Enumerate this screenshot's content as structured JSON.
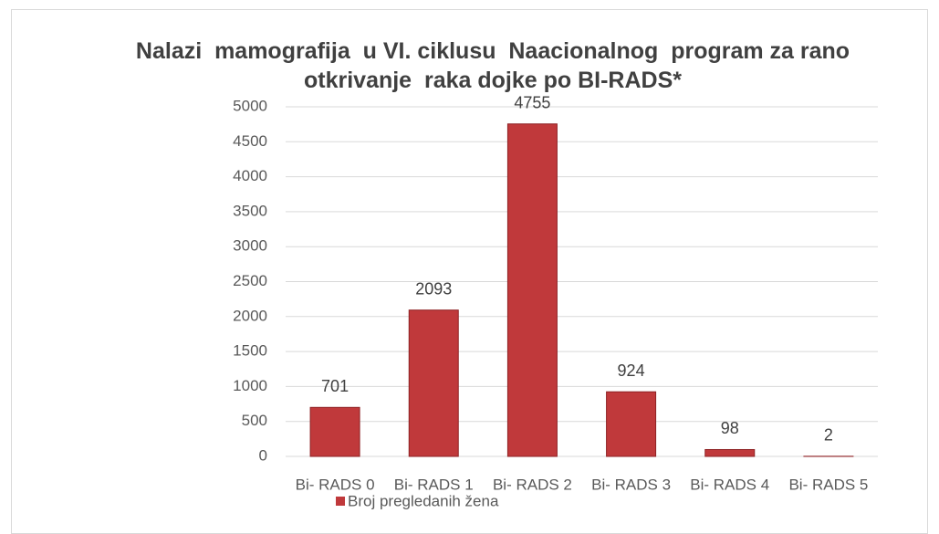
{
  "chart_data": {
    "type": "bar",
    "title": "Nalazi  mamografija  u VI. ciklusu  Naacionalnog  program za rano otkrivanje  raka dojke po BI-RADS*",
    "categories": [
      "Bi- RADS 0",
      "Bi- RADS 1",
      "Bi- RADS 2",
      "Bi- RADS 3",
      "Bi- RADS 4",
      "Bi- RADS 5"
    ],
    "series": [
      {
        "name": "Broj pregledanih žena",
        "color": "#c0393b",
        "values": [
          701,
          2093,
          4755,
          924,
          98,
          2
        ]
      }
    ],
    "ylim": [
      0,
      5000
    ],
    "yticks": [
      0,
      500,
      1000,
      1500,
      2000,
      2500,
      3000,
      3500,
      4000,
      4500,
      5000
    ],
    "grid": true,
    "legend": "bottom"
  }
}
